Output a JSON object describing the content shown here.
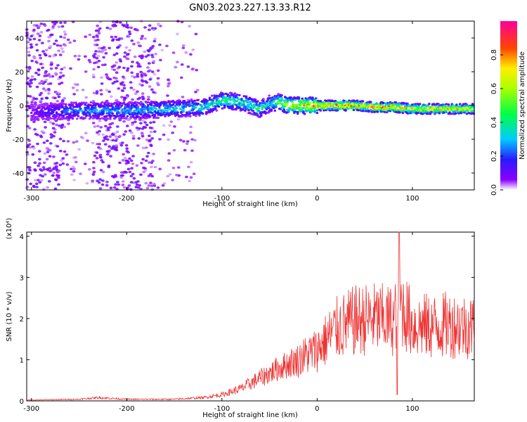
{
  "title": "GN03.2023.227.13.33.R12",
  "chart_data": [
    {
      "type": "heatmap",
      "xlabel": "Height of straight line (km)",
      "ylabel": "Frequency (Hz)",
      "xlim": [
        -305,
        165
      ],
      "ylim": [
        -50,
        50
      ],
      "xticks": [
        -300,
        -200,
        -100,
        0,
        100
      ],
      "yticks": [
        -40,
        -20,
        0,
        20,
        40
      ],
      "colorbar": {
        "label": "Normalized spectral amplitude",
        "ticks": [
          0.0,
          0.2,
          0.4,
          0.6,
          0.8
        ],
        "range": [
          0,
          1
        ]
      },
      "trace": {
        "description_values": "dominant frequency ridge vs height",
        "x": [
          -300,
          -250,
          -200,
          -150,
          -120,
          -100,
          -80,
          -60,
          -50,
          -40,
          -30,
          -20,
          0,
          20,
          40,
          60,
          80,
          100,
          120,
          140,
          160
        ],
        "y": [
          -4,
          -3,
          -3,
          -2,
          -1,
          3,
          2,
          -2,
          1,
          2,
          0,
          0,
          0,
          0,
          0,
          -1,
          -1,
          -2,
          -2,
          -2,
          -2
        ],
        "amplitude": [
          0.1,
          0.3,
          0.35,
          0.4,
          0.4,
          0.5,
          0.5,
          0.5,
          0.4,
          0.6,
          0.8,
          0.85,
          0.9,
          0.9,
          0.95,
          0.9,
          0.9,
          0.85,
          0.85,
          0.8,
          0.8
        ]
      }
    },
    {
      "type": "line",
      "xlabel": "Height of straight line (km)",
      "ylabel": "SNR (10 * v/v)",
      "yscale_label": "(x10⁴)",
      "xlim": [
        -305,
        165
      ],
      "ylim": [
        0,
        4.1
      ],
      "xticks": [
        -300,
        -200,
        -100,
        0,
        100
      ],
      "yticks": [
        0,
        1,
        2,
        3,
        4
      ],
      "color": "#ee3333",
      "envelope": {
        "x": [
          -305,
          -250,
          -230,
          -200,
          -150,
          -120,
          -100,
          -80,
          -60,
          -40,
          -20,
          0,
          20,
          40,
          60,
          80,
          86,
          100,
          120,
          140,
          165
        ],
        "y": [
          0.02,
          0.04,
          0.08,
          0.04,
          0.04,
          0.08,
          0.15,
          0.3,
          0.55,
          0.8,
          1.0,
          1.25,
          1.75,
          1.95,
          2.0,
          1.95,
          2.4,
          1.85,
          1.8,
          1.85,
          1.8
        ]
      }
    }
  ]
}
